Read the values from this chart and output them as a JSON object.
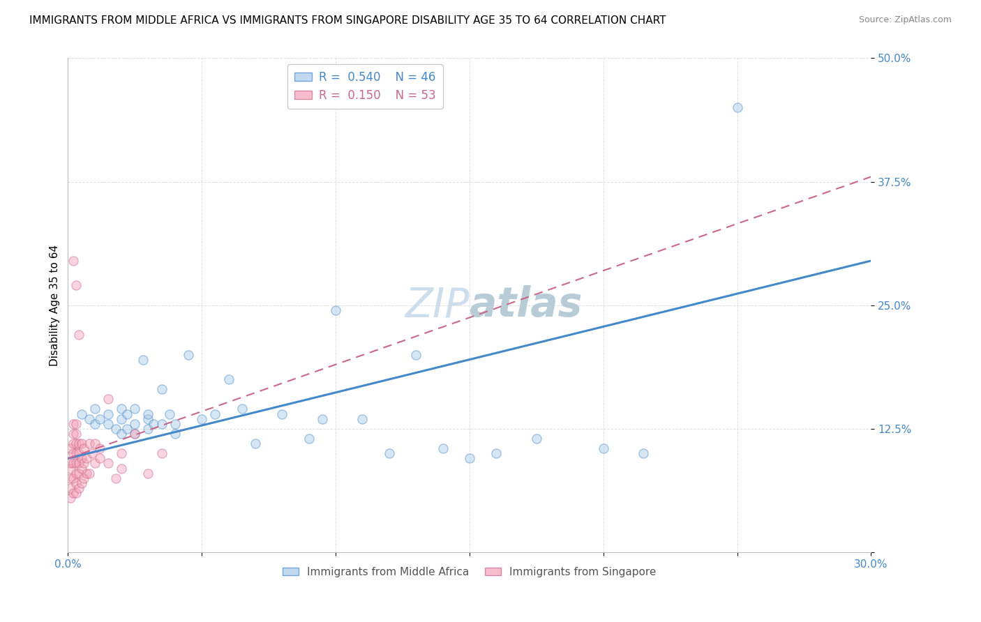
{
  "title": "IMMIGRANTS FROM MIDDLE AFRICA VS IMMIGRANTS FROM SINGAPORE DISABILITY AGE 35 TO 64 CORRELATION CHART",
  "source": "Source: ZipAtlas.com",
  "ylabel": "Disability Age 35 to 64",
  "x_min": 0.0,
  "x_max": 0.3,
  "y_min": 0.0,
  "y_max": 0.5,
  "x_ticks": [
    0.0,
    0.05,
    0.1,
    0.15,
    0.2,
    0.25,
    0.3
  ],
  "x_tick_labels": [
    "0.0%",
    "",
    "",
    "",
    "",
    "",
    "30.0%"
  ],
  "y_ticks": [
    0.0,
    0.125,
    0.25,
    0.375,
    0.5
  ],
  "y_tick_labels": [
    "",
    "12.5%",
    "25.0%",
    "37.5%",
    "50.0%"
  ],
  "blue_color": "#a8c8e8",
  "pink_color": "#f4a0b8",
  "blue_line_color": "#4488cc",
  "pink_line_color": "#cc6688",
  "watermark_zip": "ZIP",
  "watermark_atlas": "atlas",
  "legend_R_blue": "0.540",
  "legend_N_blue": "46",
  "legend_R_pink": "0.150",
  "legend_N_pink": "53",
  "legend_label_blue": "Immigrants from Middle Africa",
  "legend_label_pink": "Immigrants from Singapore",
  "blue_x": [
    0.005,
    0.008,
    0.01,
    0.01,
    0.012,
    0.015,
    0.015,
    0.018,
    0.02,
    0.02,
    0.02,
    0.022,
    0.022,
    0.025,
    0.025,
    0.025,
    0.028,
    0.03,
    0.03,
    0.03,
    0.032,
    0.035,
    0.035,
    0.038,
    0.04,
    0.04,
    0.045,
    0.05,
    0.055,
    0.06,
    0.065,
    0.07,
    0.08,
    0.09,
    0.095,
    0.1,
    0.11,
    0.12,
    0.13,
    0.14,
    0.15,
    0.16,
    0.175,
    0.2,
    0.215,
    0.25
  ],
  "blue_y": [
    0.14,
    0.135,
    0.13,
    0.145,
    0.135,
    0.13,
    0.14,
    0.125,
    0.12,
    0.135,
    0.145,
    0.125,
    0.14,
    0.12,
    0.13,
    0.145,
    0.195,
    0.135,
    0.125,
    0.14,
    0.13,
    0.165,
    0.13,
    0.14,
    0.12,
    0.13,
    0.2,
    0.135,
    0.14,
    0.175,
    0.145,
    0.11,
    0.14,
    0.115,
    0.135,
    0.245,
    0.135,
    0.1,
    0.2,
    0.105,
    0.095,
    0.1,
    0.115,
    0.105,
    0.1,
    0.45
  ],
  "pink_x": [
    0.001,
    0.001,
    0.001,
    0.001,
    0.001,
    0.001,
    0.002,
    0.002,
    0.002,
    0.002,
    0.002,
    0.002,
    0.002,
    0.003,
    0.003,
    0.003,
    0.003,
    0.003,
    0.003,
    0.003,
    0.003,
    0.004,
    0.004,
    0.004,
    0.004,
    0.004,
    0.005,
    0.005,
    0.005,
    0.005,
    0.006,
    0.006,
    0.006,
    0.007,
    0.007,
    0.008,
    0.008,
    0.009,
    0.01,
    0.01,
    0.012,
    0.012,
    0.015,
    0.015,
    0.018,
    0.02,
    0.02,
    0.025,
    0.03,
    0.035,
    0.002,
    0.003,
    0.004
  ],
  "pink_y": [
    0.055,
    0.065,
    0.075,
    0.085,
    0.09,
    0.105,
    0.06,
    0.075,
    0.09,
    0.1,
    0.11,
    0.12,
    0.13,
    0.06,
    0.07,
    0.08,
    0.09,
    0.1,
    0.11,
    0.12,
    0.13,
    0.065,
    0.08,
    0.09,
    0.1,
    0.11,
    0.07,
    0.085,
    0.095,
    0.11,
    0.075,
    0.09,
    0.105,
    0.08,
    0.095,
    0.08,
    0.11,
    0.1,
    0.09,
    0.11,
    0.095,
    0.105,
    0.09,
    0.155,
    0.075,
    0.085,
    0.1,
    0.12,
    0.08,
    0.1,
    0.295,
    0.27,
    0.22
  ],
  "grid_color": "#e0e0e0",
  "background_color": "#ffffff",
  "title_fontsize": 11,
  "axis_label_fontsize": 11,
  "tick_fontsize": 11,
  "watermark_fontsize": 42,
  "watermark_color": "#ccdded",
  "marker_size": 90,
  "marker_alpha": 0.45,
  "marker_edge_width": 1.0
}
